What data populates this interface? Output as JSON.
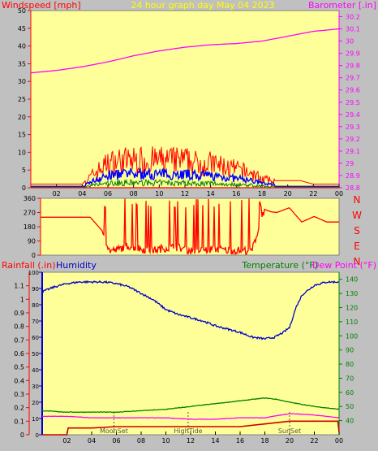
{
  "header": {
    "left_label": "Windspeed [mph]",
    "title": "24 hour graph day   May 04 2023",
    "right_label": "Barometer [.in]"
  },
  "compass_labels": [
    "N",
    "W",
    "S",
    "E",
    "N"
  ],
  "bottom_header": {
    "rainfall_label": "Rainfall (.in)",
    "humidity_label": "Humidity",
    "temperature_label": "Temperature (°F)",
    "dewpoint_label": "Dew Point (°F)"
  },
  "events": [
    {
      "label": "MoonSet",
      "hour": 5.8
    },
    {
      "label": "HighTide",
      "hour": 11.8
    },
    {
      "label": "SunSet",
      "hour": 20.0
    }
  ],
  "colors": {
    "plot_bg": "#ffff99",
    "outer_bg": "#c0c0c0",
    "wind_gust": "#ff0000",
    "wind_avg": "#0000ff",
    "wind_low": "#008000",
    "barometer": "#ff00ff",
    "direction": "#ff0000",
    "humidity": "#0000cc",
    "temperature": "#008000",
    "dewpoint": "#ff00ff",
    "rain": "#cc0000",
    "title": "#ffff00",
    "axis_red": "#ff0000",
    "axis_magenta": "#ff00ff"
  },
  "chart_data": [
    {
      "type": "line",
      "title": "24 hour graph day   May 04 2023",
      "x_tick_labels": [
        "02",
        "04",
        "06",
        "08",
        "10",
        "12",
        "14",
        "16",
        "18",
        "20",
        "22",
        "00"
      ],
      "y_left": {
        "label": "Windspeed [mph]",
        "ticks": [
          0,
          5,
          10,
          15,
          20,
          25,
          30,
          35,
          40,
          45,
          50
        ],
        "range": [
          0,
          50
        ]
      },
      "y_right": {
        "label": "Barometer [.in]",
        "ticks": [
          "28.8",
          "28.9",
          "29",
          "29.1",
          "29.2",
          "29.3",
          "29.4",
          "29.5",
          "29.6",
          "29.7",
          "29.8",
          "29.9",
          "30",
          "30.1",
          "30.2"
        ],
        "range": [
          28.8,
          30.25
        ]
      },
      "series": [
        {
          "name": "Windspeed",
          "hours": [
            0,
            4,
            5,
            6,
            7,
            8,
            9,
            10,
            11,
            12,
            13,
            14,
            15,
            16,
            17,
            18,
            19,
            20,
            21,
            22,
            23,
            24
          ],
          "values": [
            1,
            1,
            5,
            8,
            9,
            9,
            9,
            9,
            9,
            9,
            8,
            8,
            7,
            6,
            5,
            3,
            2,
            2,
            2,
            1,
            1,
            1
          ]
        },
        {
          "name": "Barometer",
          "hours": [
            0,
            2,
            4,
            6,
            8,
            10,
            12,
            14,
            16,
            18,
            20,
            22,
            24
          ],
          "values": [
            29.74,
            29.76,
            29.79,
            29.83,
            29.88,
            29.92,
            29.95,
            29.97,
            29.98,
            30.0,
            30.04,
            30.08,
            30.1
          ]
        }
      ]
    },
    {
      "type": "scatter",
      "y_ticks": [
        0,
        90,
        180,
        270,
        360
      ],
      "range": [
        0,
        360
      ],
      "series": [
        {
          "name": "Wind direction",
          "hours": [
            0,
            2,
            4,
            5,
            5.5,
            6,
            7,
            8,
            9,
            10,
            11,
            12,
            13,
            14,
            15,
            16,
            17,
            18,
            18.5,
            19,
            20,
            21,
            22,
            23,
            24
          ],
          "values": [
            240,
            240,
            240,
            150,
            30,
            30,
            60,
            40,
            30,
            45,
            50,
            30,
            30,
            40,
            30,
            30,
            30,
            290,
            275,
            270,
            300,
            210,
            245,
            210,
            210
          ]
        }
      ]
    },
    {
      "type": "line",
      "x_tick_labels": [
        "02",
        "04",
        "06",
        "08",
        "10",
        "12",
        "14",
        "16",
        "18",
        "20",
        "22",
        "00"
      ],
      "y_left": {
        "label": "Rainfall (.in)",
        "ticks": [
          "0",
          "0.1",
          "0.2",
          "0.3",
          "0.4",
          "0.5",
          "0.6",
          "0.7",
          "0.8",
          "0.9",
          "1",
          "1.1"
        ],
        "range": [
          0,
          1.2
        ]
      },
      "y_humidity": {
        "label": "Humidity",
        "ticks": [
          0,
          10,
          20,
          30,
          40,
          50,
          60,
          70,
          80,
          90,
          100
        ],
        "range": [
          0,
          100
        ]
      },
      "y_right": {
        "label": "Temperature (°F)",
        "ticks": [
          40,
          50,
          60,
          70,
          80,
          90,
          100,
          110,
          120,
          130,
          140
        ],
        "range": [
          30,
          145
        ]
      },
      "series": [
        {
          "name": "Humidity",
          "hours": [
            0,
            1,
            2,
            3,
            4,
            5,
            6,
            7,
            8,
            9,
            10,
            11,
            12,
            13,
            14,
            15,
            16,
            17,
            18,
            18.8,
            19.5,
            20,
            20.5,
            21,
            22,
            23,
            24
          ],
          "values": [
            88,
            91,
            93,
            94,
            94,
            94,
            93,
            91,
            87,
            83,
            77,
            74,
            72,
            70,
            67,
            65,
            63,
            60,
            59,
            60,
            63,
            66,
            78,
            86,
            92,
            94,
            94
          ]
        },
        {
          "name": "Temperature (°F)",
          "hours": [
            0,
            2,
            4,
            6,
            8,
            10,
            12,
            14,
            16,
            18,
            19,
            20,
            22,
            24
          ],
          "values": [
            47,
            46,
            46,
            46,
            47,
            48,
            50,
            52,
            54,
            56,
            55,
            53,
            50,
            48
          ]
        },
        {
          "name": "Dew Point (°F)",
          "hours": [
            0,
            2,
            4,
            6,
            8,
            10,
            12,
            14,
            16,
            18,
            20,
            22,
            24
          ],
          "values": [
            43,
            43,
            42,
            42,
            42,
            42,
            41,
            41,
            42,
            42,
            45,
            44,
            42
          ]
        },
        {
          "name": "Rainfall (.in)",
          "hours": [
            0,
            2,
            2.1,
            4,
            6,
            8,
            10,
            12,
            14,
            16,
            18,
            20,
            22,
            23.9,
            24
          ],
          "values": [
            0,
            0,
            0.05,
            0.05,
            0.06,
            0.06,
            0.06,
            0.06,
            0.06,
            0.06,
            0.08,
            0.1,
            0.1,
            0.1,
            0.02
          ]
        }
      ]
    }
  ]
}
